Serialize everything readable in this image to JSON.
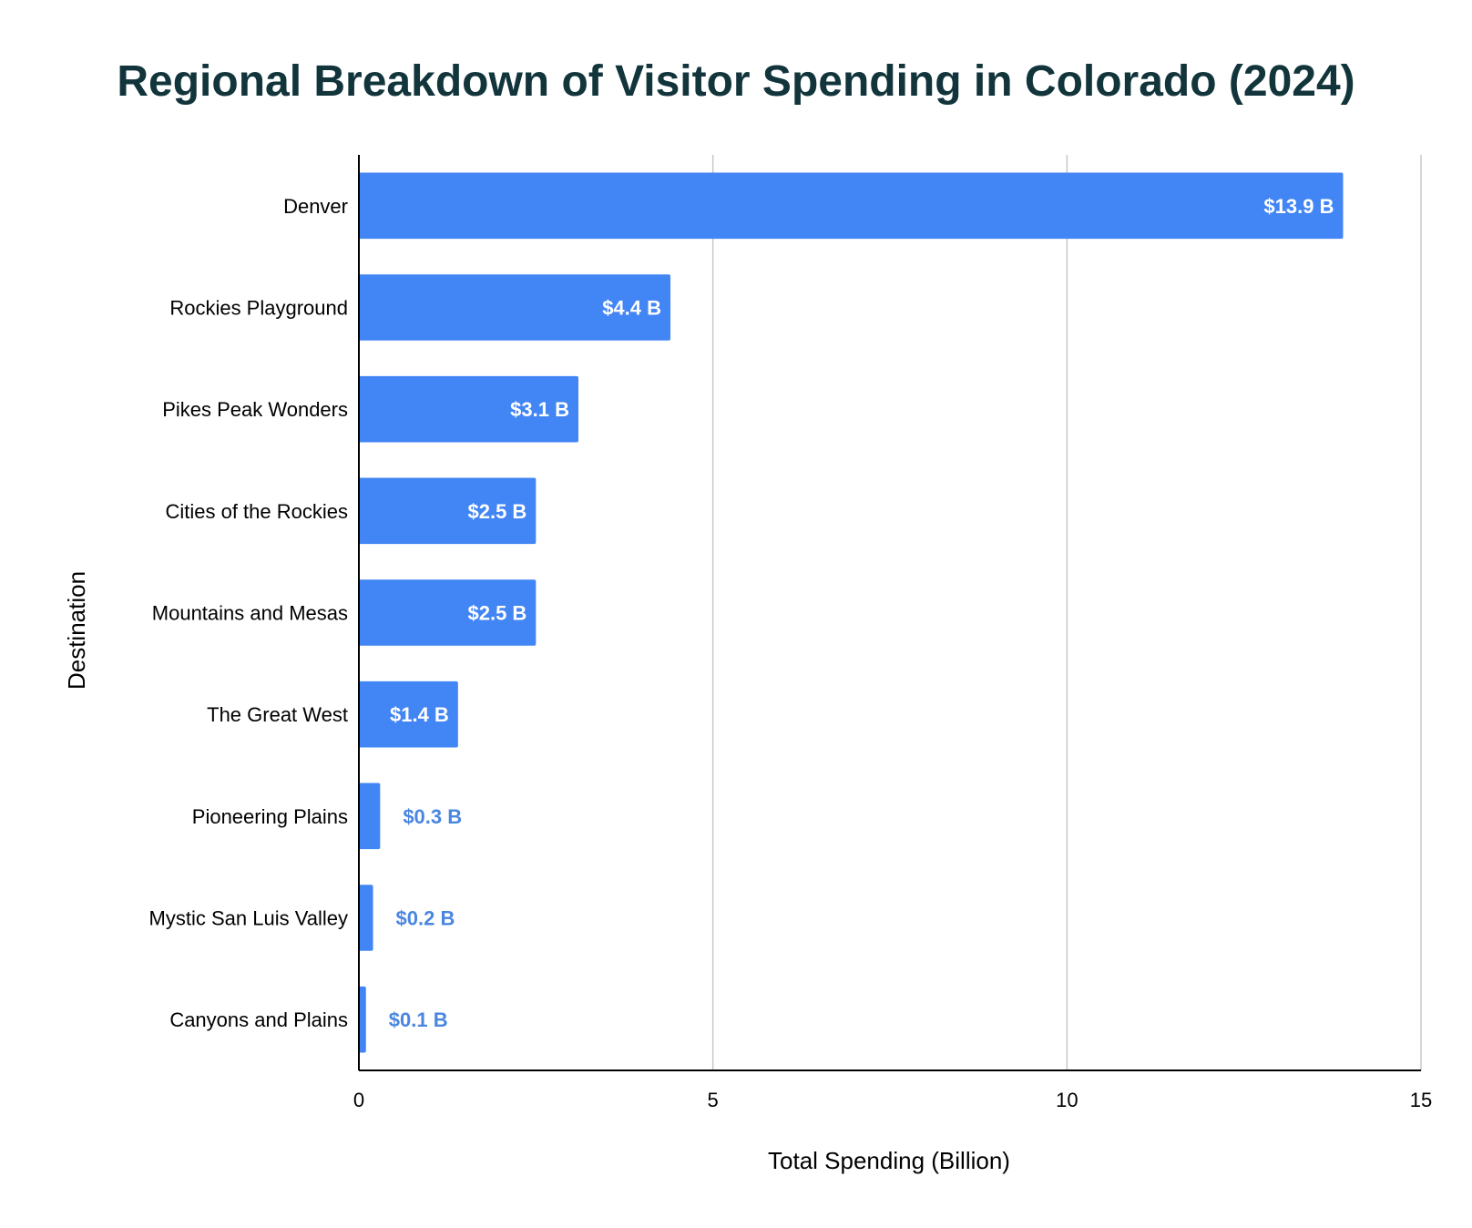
{
  "chart_data": {
    "type": "bar",
    "orientation": "horizontal",
    "title": "Regional Breakdown of Visitor Spending in Colorado (2024)",
    "xlabel": "Total Spending (Billion)",
    "ylabel": "Destination",
    "xlim": [
      0,
      15
    ],
    "xticks": [
      "0",
      "5",
      "10",
      "15"
    ],
    "xtick_values": [
      0,
      5,
      10,
      15
    ],
    "grid": "vertical",
    "legend": "none",
    "categories": [
      "Denver",
      "Rockies Playground",
      "Pikes Peak Wonders",
      "Cities of the Rockies",
      "Mountains and Mesas",
      "The Great West",
      "Pioneering Plains",
      "Mystic San Luis Valley",
      "Canyons and Plains"
    ],
    "values": [
      13.9,
      4.4,
      3.1,
      2.5,
      2.5,
      1.4,
      0.3,
      0.2,
      0.1
    ],
    "data_labels": [
      "$13.9 B",
      "$4.4 B",
      "$3.1 B",
      "$2.5 B",
      "$2.5 B",
      "$1.4 B",
      "$0.3 B",
      "$0.2 B",
      "$0.1 B"
    ],
    "colors": {
      "bar": "#4285f4",
      "label_inside": "#ffffff",
      "label_outside": "#4a86e0",
      "title": "#12343b",
      "grid": "#c8c8c8",
      "axis": "#000000"
    }
  }
}
